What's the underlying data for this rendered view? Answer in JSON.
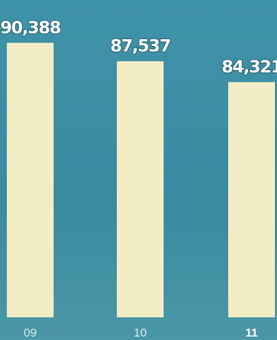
{
  "chart_data": {
    "type": "bar",
    "categories": [
      "09",
      "10",
      "11"
    ],
    "values": [
      90388,
      87537,
      84321
    ],
    "value_labels": [
      "90,388",
      "87,537",
      "84,321"
    ],
    "color": "#f3edc6",
    "ylim": [
      48000,
      97000
    ]
  }
}
